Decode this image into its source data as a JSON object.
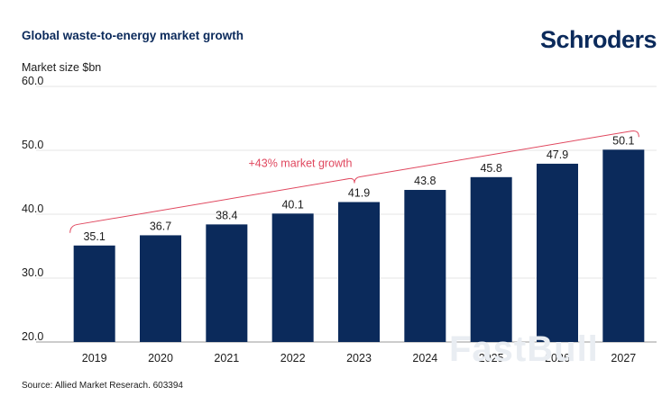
{
  "header": {
    "title": "Global waste-to-energy market growth",
    "brand": "Schroders"
  },
  "footer": {
    "source": "Source: Allied Market Reserach. 603394",
    "watermark": "FastBull"
  },
  "chart_data": {
    "type": "bar",
    "title": "Global waste-to-energy market growth",
    "ylabel": "Market size $bn",
    "xlabel": "",
    "ylim": [
      20,
      60
    ],
    "yticks": [
      20,
      30,
      40,
      50,
      60
    ],
    "ytick_labels": [
      "20.0",
      "30.0",
      "40.0",
      "50.0",
      "60.0"
    ],
    "categories": [
      "2019",
      "2020",
      "2021",
      "2022",
      "2023",
      "2024",
      "2025",
      "2026",
      "2027"
    ],
    "values": [
      35.1,
      36.7,
      38.4,
      40.1,
      41.9,
      43.8,
      45.8,
      47.9,
      50.1
    ],
    "value_labels": [
      "35.1",
      "36.7",
      "38.4",
      "40.1",
      "41.9",
      "43.8",
      "45.8",
      "47.9",
      "50.1"
    ],
    "grid": true,
    "bar_color": "#0b2a5b",
    "annotation": {
      "text": "+43% market growth",
      "color": "#e0475e",
      "from_category": "2019",
      "to_category": "2027"
    }
  }
}
